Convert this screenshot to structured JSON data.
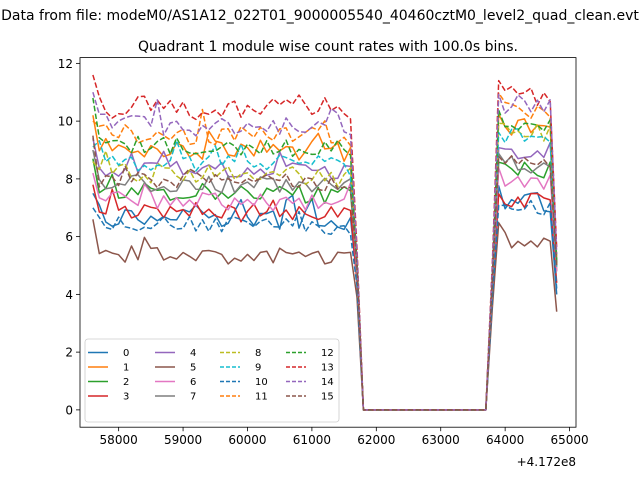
{
  "figure": {
    "suptitle": "Data from file: modeM0/AS1A12_022T01_9000005540_40460cztM0_level2_quad_clean.evt"
  },
  "chart_data": {
    "type": "line",
    "title": "Quadrant 1 module wise count rates with 100.0s bins.",
    "xlabel": "",
    "ylabel": "",
    "x_offset_label": "+4.172e8",
    "x_offset": 417200000,
    "xlim": [
      57400,
      65100
    ],
    "ylim": [
      -0.6,
      12.2
    ],
    "x_ticks": [
      58000,
      59000,
      60000,
      61000,
      62000,
      63000,
      64000,
      65000
    ],
    "x_tick_labels": [
      "58000",
      "59000",
      "60000",
      "61000",
      "62000",
      "63000",
      "64000",
      "65000"
    ],
    "y_ticks": [
      0,
      2,
      4,
      6,
      8,
      10,
      12
    ],
    "y_tick_labels": [
      "0",
      "2",
      "4",
      "6",
      "8",
      "10",
      "12"
    ],
    "grid": false,
    "legend": {
      "position": "lower-left",
      "columns": 4
    },
    "bin_width_s": 100,
    "segments": {
      "active1_start": 57600,
      "active1_end": 61700,
      "gap_start": 61800,
      "gap_end": 63700,
      "active2_start": 63800,
      "active2_end": 64800,
      "first_drop_value_at": 61700
    },
    "series": [
      {
        "name": "0",
        "color": "#1f77b4",
        "dash": "solid",
        "level1": 6.7,
        "spread": 0.35,
        "level2": 7.2,
        "first": 7.5,
        "end1": 4.5,
        "end2": 4.0
      },
      {
        "name": "1",
        "color": "#ff7f0e",
        "dash": "solid",
        "level1": 9.1,
        "spread": 0.35,
        "level2": 9.8,
        "first": 10.2,
        "end1": 4.7,
        "end2": 4.8
      },
      {
        "name": "2",
        "color": "#2ca02c",
        "dash": "solid",
        "level1": 7.6,
        "spread": 0.3,
        "level2": 8.3,
        "first": 8.7,
        "end1": 4.6,
        "end2": 5.2
      },
      {
        "name": "3",
        "color": "#d62728",
        "dash": "solid",
        "level1": 6.9,
        "spread": 0.3,
        "level2": 7.3,
        "first": 7.8,
        "end1": 4.4,
        "end2": 4.4
      },
      {
        "name": "4",
        "color": "#9467bd",
        "dash": "solid",
        "level1": 8.4,
        "spread": 0.3,
        "level2": 9.0,
        "first": 9.4,
        "end1": 4.8,
        "end2": 5.0
      },
      {
        "name": "5",
        "color": "#8c564b",
        "dash": "solid",
        "level1": 5.4,
        "spread": 0.3,
        "level2": 5.9,
        "first": 6.6,
        "end1": 3.9,
        "end2": 3.4
      },
      {
        "name": "6",
        "color": "#e377c2",
        "dash": "solid",
        "level1": 7.3,
        "spread": 0.3,
        "level2": 7.9,
        "first": 8.2,
        "end1": 4.6,
        "end2": 4.8
      },
      {
        "name": "7",
        "color": "#7f7f7f",
        "dash": "solid",
        "level1": 7.9,
        "spread": 0.3,
        "level2": 8.5,
        "first": 9.0,
        "end1": 4.8,
        "end2": 5.0
      },
      {
        "name": "8",
        "color": "#bcbd22",
        "dash": "dashed",
        "level1": 8.2,
        "spread": 0.35,
        "level2": 9.6,
        "first": 8.6,
        "end1": 5.0,
        "end2": 5.3
      },
      {
        "name": "9",
        "color": "#17becf",
        "dash": "dashed",
        "level1": 8.6,
        "spread": 0.35,
        "level2": 9.4,
        "first": 9.1,
        "end1": 5.0,
        "end2": 4.9
      },
      {
        "name": "10",
        "color": "#1f77b4",
        "dash": "dashed",
        "level1": 6.5,
        "spread": 0.3,
        "level2": 7.0,
        "first": 7.0,
        "end1": 4.3,
        "end2": 4.2
      },
      {
        "name": "11",
        "color": "#ff7f0e",
        "dash": "dashed",
        "level1": 9.6,
        "spread": 0.35,
        "level2": 10.3,
        "first": 10.0,
        "end1": 5.2,
        "end2": 5.0
      },
      {
        "name": "12",
        "color": "#2ca02c",
        "dash": "dashed",
        "level1": 9.2,
        "spread": 0.3,
        "level2": 9.9,
        "first": 10.8,
        "end1": 5.1,
        "end2": 5.1
      },
      {
        "name": "13",
        "color": "#d62728",
        "dash": "dashed",
        "level1": 10.5,
        "spread": 0.4,
        "level2": 10.9,
        "first": 11.6,
        "end1": 5.6,
        "end2": 5.6
      },
      {
        "name": "14",
        "color": "#9467bd",
        "dash": "dashed",
        "level1": 9.9,
        "spread": 0.35,
        "level2": 10.6,
        "first": 11.0,
        "end1": 5.4,
        "end2": 5.4
      },
      {
        "name": "15",
        "color": "#8c564b",
        "dash": "dashed",
        "level1": 8.0,
        "spread": 0.3,
        "level2": 8.6,
        "first": 9.5,
        "end1": 4.9,
        "end2": 5.0
      }
    ]
  }
}
